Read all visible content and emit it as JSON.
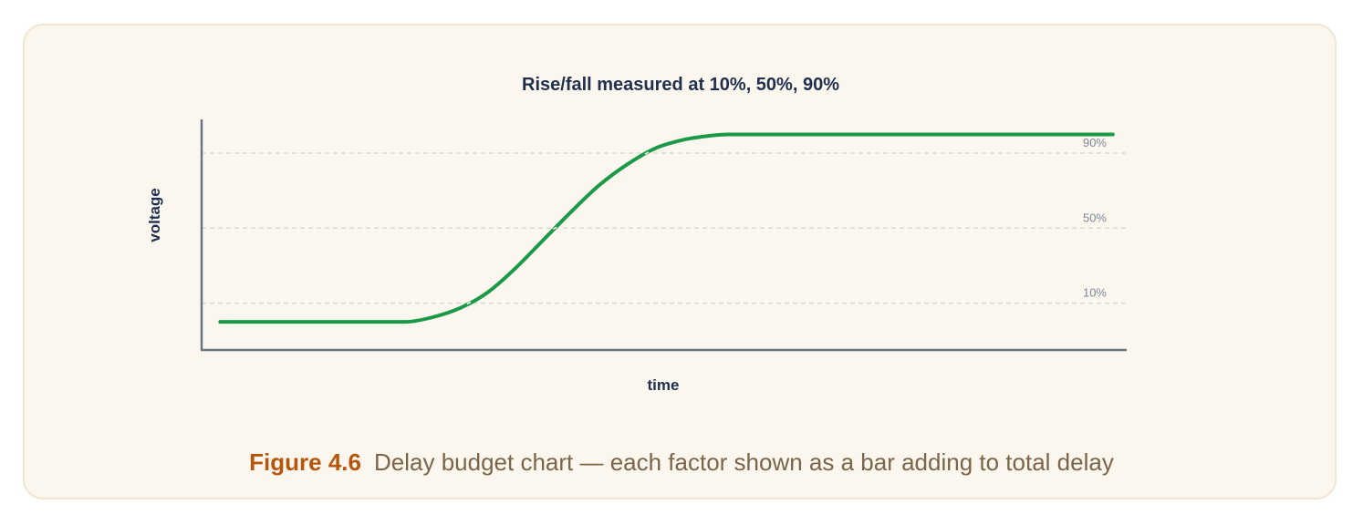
{
  "colors": {
    "card_background": "#fbf7ee",
    "card_border": "#efe6d2",
    "curve": "#1a9a48",
    "axis": "#6b7385",
    "reference_line": "#d9d9d3",
    "title": "#1f2f4d",
    "figure_number": "#b5560c",
    "caption_text": "#7a6548"
  },
  "chart_data": {
    "type": "line",
    "title": "Rise/fall measured at 10%, 50%, 90%",
    "xlabel": "time",
    "ylabel": "voltage",
    "x_ticks_shown": false,
    "y_ticks_shown": false,
    "grid": false,
    "legend": "none",
    "ylim": [
      -0.15,
      1.08
    ],
    "xlim": [
      0,
      1
    ],
    "reference_lines": [
      {
        "label": "90%",
        "y": 0.9
      },
      {
        "label": "50%",
        "y": 0.5
      },
      {
        "label": "10%",
        "y": 0.1
      }
    ],
    "series": [
      {
        "color": "#1a9a48",
        "x": [
          0.02,
          0.2,
          0.22,
          0.25,
          0.28,
          0.31,
          0.34,
          0.37,
          0.4,
          0.43,
          0.46,
          0.49,
          0.52,
          0.55,
          0.57,
          0.985
        ],
        "y": [
          0.0,
          0.0,
          0.0,
          0.025,
          0.075,
          0.16,
          0.29,
          0.44,
          0.59,
          0.73,
          0.84,
          0.925,
          0.97,
          0.993,
          1.0,
          1.0
        ]
      }
    ]
  },
  "caption": {
    "figure_number": "Figure 4.6",
    "text": "Delay budget chart — each factor shown as a bar adding to total delay"
  }
}
